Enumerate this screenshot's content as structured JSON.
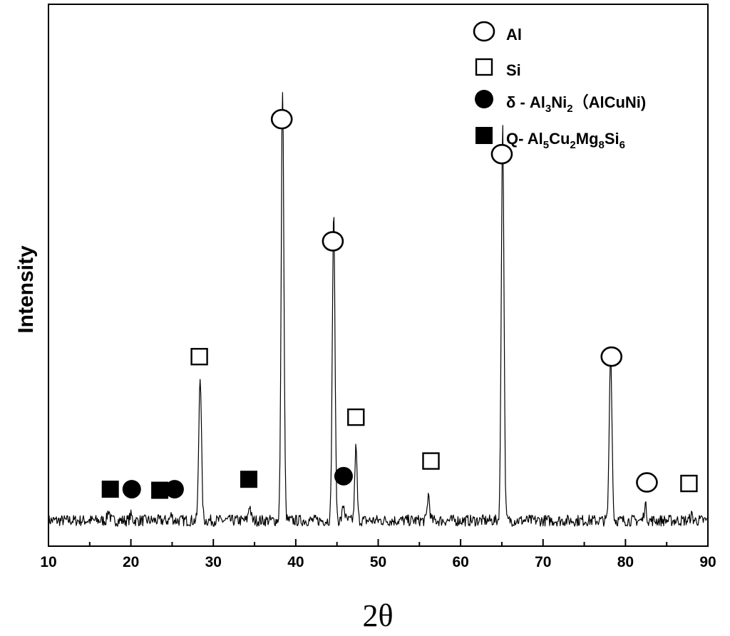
{
  "chart_data": {
    "type": "line",
    "title": "",
    "xlabel": "2θ",
    "ylabel": "Intensity",
    "xlim": [
      10,
      90
    ],
    "ylim": [
      0,
      100
    ],
    "xticks": [
      "10",
      "20",
      "30",
      "40",
      "50",
      "60",
      "70",
      "80",
      "90"
    ],
    "grid": false,
    "legend_position": "top-right",
    "legend": [
      {
        "marker": "open-circle",
        "label": "Al",
        "parts": [
          {
            "t": "Al"
          }
        ]
      },
      {
        "marker": "open-square",
        "label": "Si",
        "parts": [
          {
            "t": "Si"
          }
        ]
      },
      {
        "marker": "filled-circle",
        "label": "δ - Al3Ni2（AlCuNi)",
        "parts": [
          {
            "t": "δ - Al"
          },
          {
            "t": "3",
            "sub": true
          },
          {
            "t": "Ni"
          },
          {
            "t": "2",
            "sub": true
          },
          {
            "t": "（AlCuNi)"
          }
        ]
      },
      {
        "marker": "filled-square",
        "label": "Q- Al5Cu2Mg8Si6",
        "parts": [
          {
            "t": "Q- Al"
          },
          {
            "t": "5",
            "sub": true
          },
          {
            "t": "Cu"
          },
          {
            "t": "2",
            "sub": true
          },
          {
            "t": "Mg"
          },
          {
            "t": "8",
            "sub": true
          },
          {
            "t": "Si"
          },
          {
            "t": "6",
            "sub": true
          }
        ]
      }
    ],
    "baseline": 3,
    "peaks": [
      {
        "x": 17.3,
        "y": 5
      },
      {
        "x": 20.0,
        "y": 4
      },
      {
        "x": 24.9,
        "y": 4
      },
      {
        "x": 28.4,
        "y": 31
      },
      {
        "x": 34.4,
        "y": 6
      },
      {
        "x": 38.4,
        "y": 86
      },
      {
        "x": 44.6,
        "y": 62
      },
      {
        "x": 45.8,
        "y": 6
      },
      {
        "x": 47.3,
        "y": 17
      },
      {
        "x": 56.1,
        "y": 8
      },
      {
        "x": 65.1,
        "y": 79
      },
      {
        "x": 78.2,
        "y": 36
      },
      {
        "x": 82.4,
        "y": 6
      },
      {
        "x": 88.0,
        "y": 4
      }
    ],
    "markers": [
      {
        "phase": "Q",
        "shape": "filled-square",
        "x": 17.5,
        "y": 9.0
      },
      {
        "phase": "δ",
        "shape": "filled-circle",
        "x": 20.1,
        "y": 9.0
      },
      {
        "phase": "Q",
        "shape": "filled-square",
        "x": 23.5,
        "y": 8.8
      },
      {
        "phase": "δ",
        "shape": "filled-circle",
        "x": 25.3,
        "y": 9.0
      },
      {
        "phase": "Si",
        "shape": "open-square",
        "x": 28.3,
        "y": 34.4
      },
      {
        "phase": "Q",
        "shape": "filled-square",
        "x": 34.3,
        "y": 10.9
      },
      {
        "phase": "Al",
        "shape": "open-circle",
        "x": 38.3,
        "y": 79.9
      },
      {
        "phase": "Al",
        "shape": "open-circle",
        "x": 44.5,
        "y": 56.5
      },
      {
        "phase": "δ",
        "shape": "filled-circle",
        "x": 45.8,
        "y": 11.5
      },
      {
        "phase": "Si",
        "shape": "open-square",
        "x": 47.3,
        "y": 22.8
      },
      {
        "phase": "Si",
        "shape": "open-square",
        "x": 56.4,
        "y": 14.4
      },
      {
        "phase": "Al",
        "shape": "open-circle",
        "x": 65.0,
        "y": 73.2
      },
      {
        "phase": "Al",
        "shape": "open-circle",
        "x": 78.3,
        "y": 34.4
      },
      {
        "phase": "Al",
        "shape": "open-circle",
        "x": 82.6,
        "y": 10.3
      },
      {
        "phase": "Si",
        "shape": "open-square",
        "x": 87.7,
        "y": 10.1
      }
    ]
  }
}
